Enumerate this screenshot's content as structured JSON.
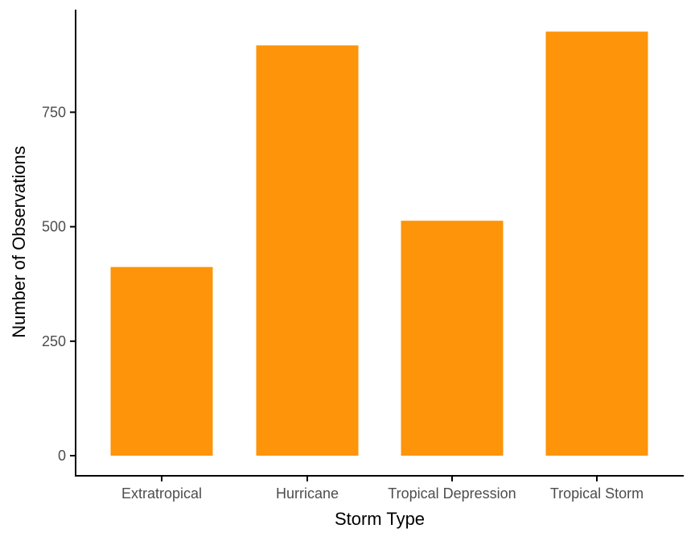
{
  "chart_data": {
    "type": "bar",
    "title": "",
    "xlabel": "Storm Type",
    "ylabel": "Number of Observations",
    "categories": [
      "Extratropical",
      "Hurricane",
      "Tropical Depression",
      "Tropical Storm"
    ],
    "values": [
      412,
      896,
      513,
      926
    ],
    "ylim": [
      0,
      960
    ],
    "yticks": [
      0,
      250,
      500,
      750
    ],
    "grid": false,
    "legend": "none",
    "bar_color": "#FD9409",
    "axis_color": "#000000"
  }
}
